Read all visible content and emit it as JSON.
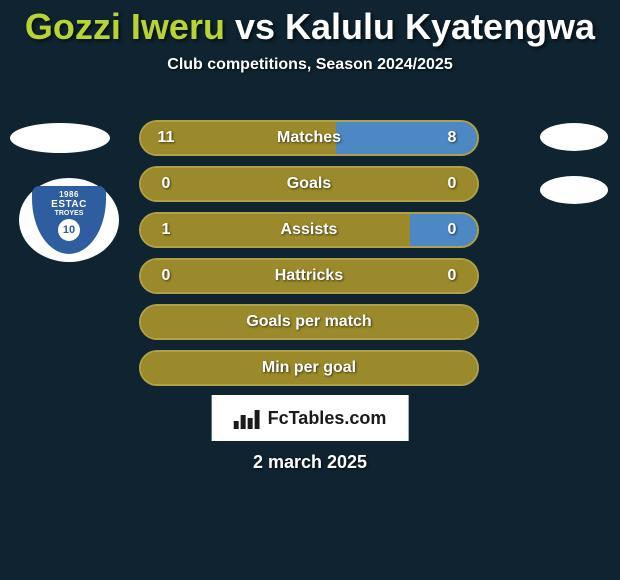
{
  "title": {
    "full": "Gozzi Iweru vs Kalulu Kyatengwa",
    "player1": "Gozzi Iweru",
    "player2": "Kalulu Kyatengwa",
    "color1": "#b8d432",
    "color2": "#ffffff",
    "vs_color": "#ffffff"
  },
  "subtitle": "Club competitions, Season 2024/2025",
  "colors": {
    "background": "#0f2330",
    "bar_olive": "#9a8a2b",
    "bar_olive_dark": "#7a6e22",
    "bar_blue": "#4d88c4",
    "border": "#b0a048",
    "white": "#ffffff"
  },
  "team_logo": {
    "year": "1986",
    "name": "ESTAC",
    "city": "TROYES",
    "number": "10",
    "shield_color": "#2e5ea0"
  },
  "stats": [
    {
      "label": "Matches",
      "left_val": "11",
      "right_val": "8",
      "left_pct": 58,
      "right_pct": 42,
      "left_color": "#9a8a2b",
      "right_color": "#4d88c4"
    },
    {
      "label": "Goals",
      "left_val": "0",
      "right_val": "0",
      "left_pct": 100,
      "right_pct": 0,
      "left_color": "#9a8a2b",
      "right_color": "#4d88c4"
    },
    {
      "label": "Assists",
      "left_val": "1",
      "right_val": "0",
      "left_pct": 80,
      "right_pct": 20,
      "left_color": "#9a8a2b",
      "right_color": "#4d88c4"
    },
    {
      "label": "Hattricks",
      "left_val": "0",
      "right_val": "0",
      "left_pct": 100,
      "right_pct": 0,
      "left_color": "#9a8a2b",
      "right_color": "#4d88c4"
    },
    {
      "label": "Goals per match",
      "left_val": "",
      "right_val": "",
      "left_pct": 100,
      "right_pct": 0,
      "left_color": "#9a8a2b",
      "right_color": "#4d88c4"
    },
    {
      "label": "Min per goal",
      "left_val": "",
      "right_val": "",
      "left_pct": 100,
      "right_pct": 0,
      "left_color": "#9a8a2b",
      "right_color": "#4d88c4"
    }
  ],
  "brand": "FcTables.com",
  "date": "2 march 2025"
}
